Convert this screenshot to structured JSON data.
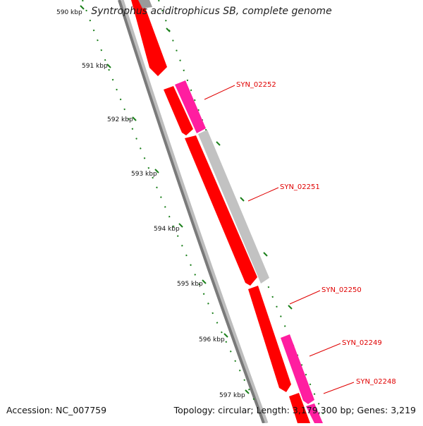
{
  "title": "Syntrophus aciditrophicus SB, complete genome",
  "footer": {
    "accession": "Accession: NC_007759",
    "info": "Topology: circular; Length: 3,179,300 bp; Genes: 3,219"
  },
  "ticks": [
    "590 kbp",
    "591 kbp",
    "592 kbp",
    "593 kbp",
    "594 kbp",
    "595 kbp",
    "596 kbp",
    "597 kbp"
  ],
  "genes": [
    "SYN_02252",
    "SYN_02251",
    "SYN_02250",
    "SYN_02249",
    "SYN_02248"
  ],
  "colors": {
    "cds_red": "#ff0000",
    "cds_magenta": "#ff1ea0",
    "cds_gray": "#c0c0c0",
    "backbone": "#808080",
    "tick_green": "#008000",
    "label_red": "#e00000"
  }
}
